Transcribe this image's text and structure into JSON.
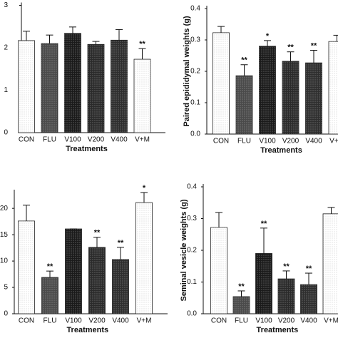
{
  "chart_data": [
    {
      "type": "bar",
      "categories": [
        "CON",
        "FLU",
        "V100",
        "V200",
        "V400",
        "V+M"
      ],
      "values": [
        2.17,
        2.1,
        2.34,
        2.08,
        2.18,
        1.73
      ],
      "errors": [
        0.22,
        0.2,
        0.15,
        0.07,
        0.25,
        0.25
      ],
      "annotations": [
        null,
        null,
        null,
        null,
        null,
        "**"
      ],
      "colors": [
        "#ffffff",
        "#4a4a4a",
        "#1a1a1a",
        "#2a2a2a",
        "#2e2e2e",
        "#ffffff"
      ],
      "xlabel": "Treatments",
      "ylim": [
        0,
        3
      ],
      "yticks": [
        0,
        1,
        2,
        3
      ]
    },
    {
      "type": "bar",
      "categories": [
        "CON",
        "FLU",
        "V100",
        "V200",
        "V400",
        "V+M"
      ],
      "values": [
        0.323,
        0.186,
        0.28,
        0.232,
        0.227,
        0.295
      ],
      "errors": [
        0.02,
        0.035,
        0.018,
        0.03,
        0.04,
        0.02
      ],
      "annotations": [
        null,
        "**",
        "*",
        "**",
        "**",
        null
      ],
      "colors": [
        "#ffffff",
        "#4a4a4a",
        "#1a1a1a",
        "#2a2a2a",
        "#2e2e2e",
        "#ffffff"
      ],
      "xlabel": "Treatments",
      "ylabel": "Paired epididymal weights (g)",
      "ylim": [
        0,
        0.4
      ],
      "yticks": [
        {
          "value": 0,
          "label": "0.0"
        },
        0.1,
        0.2,
        0.3,
        0.4
      ]
    },
    {
      "type": "bar",
      "categories": [
        "CON",
        "FLU",
        "V100",
        "V200",
        "V400",
        "V+M"
      ],
      "values": [
        17.6,
        6.9,
        16.1,
        12.6,
        10.3,
        21.1
      ],
      "errors": [
        3,
        1.2,
        0,
        1.9,
        2.3,
        1.9
      ],
      "annotations": [
        null,
        "**",
        null,
        "**",
        "**",
        "*"
      ],
      "colors": [
        "#ffffff",
        "#4a4a4a",
        "#1a1a1a",
        "#2a2a2a",
        "#2e2e2e",
        "#ffffff"
      ],
      "xlabel": "Treatments",
      "ylim": [
        0,
        23
      ],
      "yticks": [
        0,
        5,
        10,
        15,
        20
      ]
    },
    {
      "type": "bar",
      "categories": [
        "CON",
        "FLU",
        "V100",
        "V200",
        "V400",
        "V+M"
      ],
      "values": [
        0.272,
        0.054,
        0.19,
        0.11,
        0.092,
        0.315
      ],
      "errors": [
        0.047,
        0.018,
        0.08,
        0.025,
        0.036,
        0.02
      ],
      "annotations": [
        null,
        "**",
        "**",
        "**",
        "**",
        null
      ],
      "colors": [
        "#ffffff",
        "#4a4a4a",
        "#1a1a1a",
        "#2a2a2a",
        "#2e2e2e",
        "#ffffff"
      ],
      "xlabel": "Treatments",
      "ylabel": "Seminal vesicle weights (g)",
      "ylim": [
        0,
        0.4
      ],
      "yticks": [
        {
          "value": 0,
          "label": "0.0"
        },
        0.1,
        0.2,
        0.3,
        0.4
      ]
    }
  ]
}
